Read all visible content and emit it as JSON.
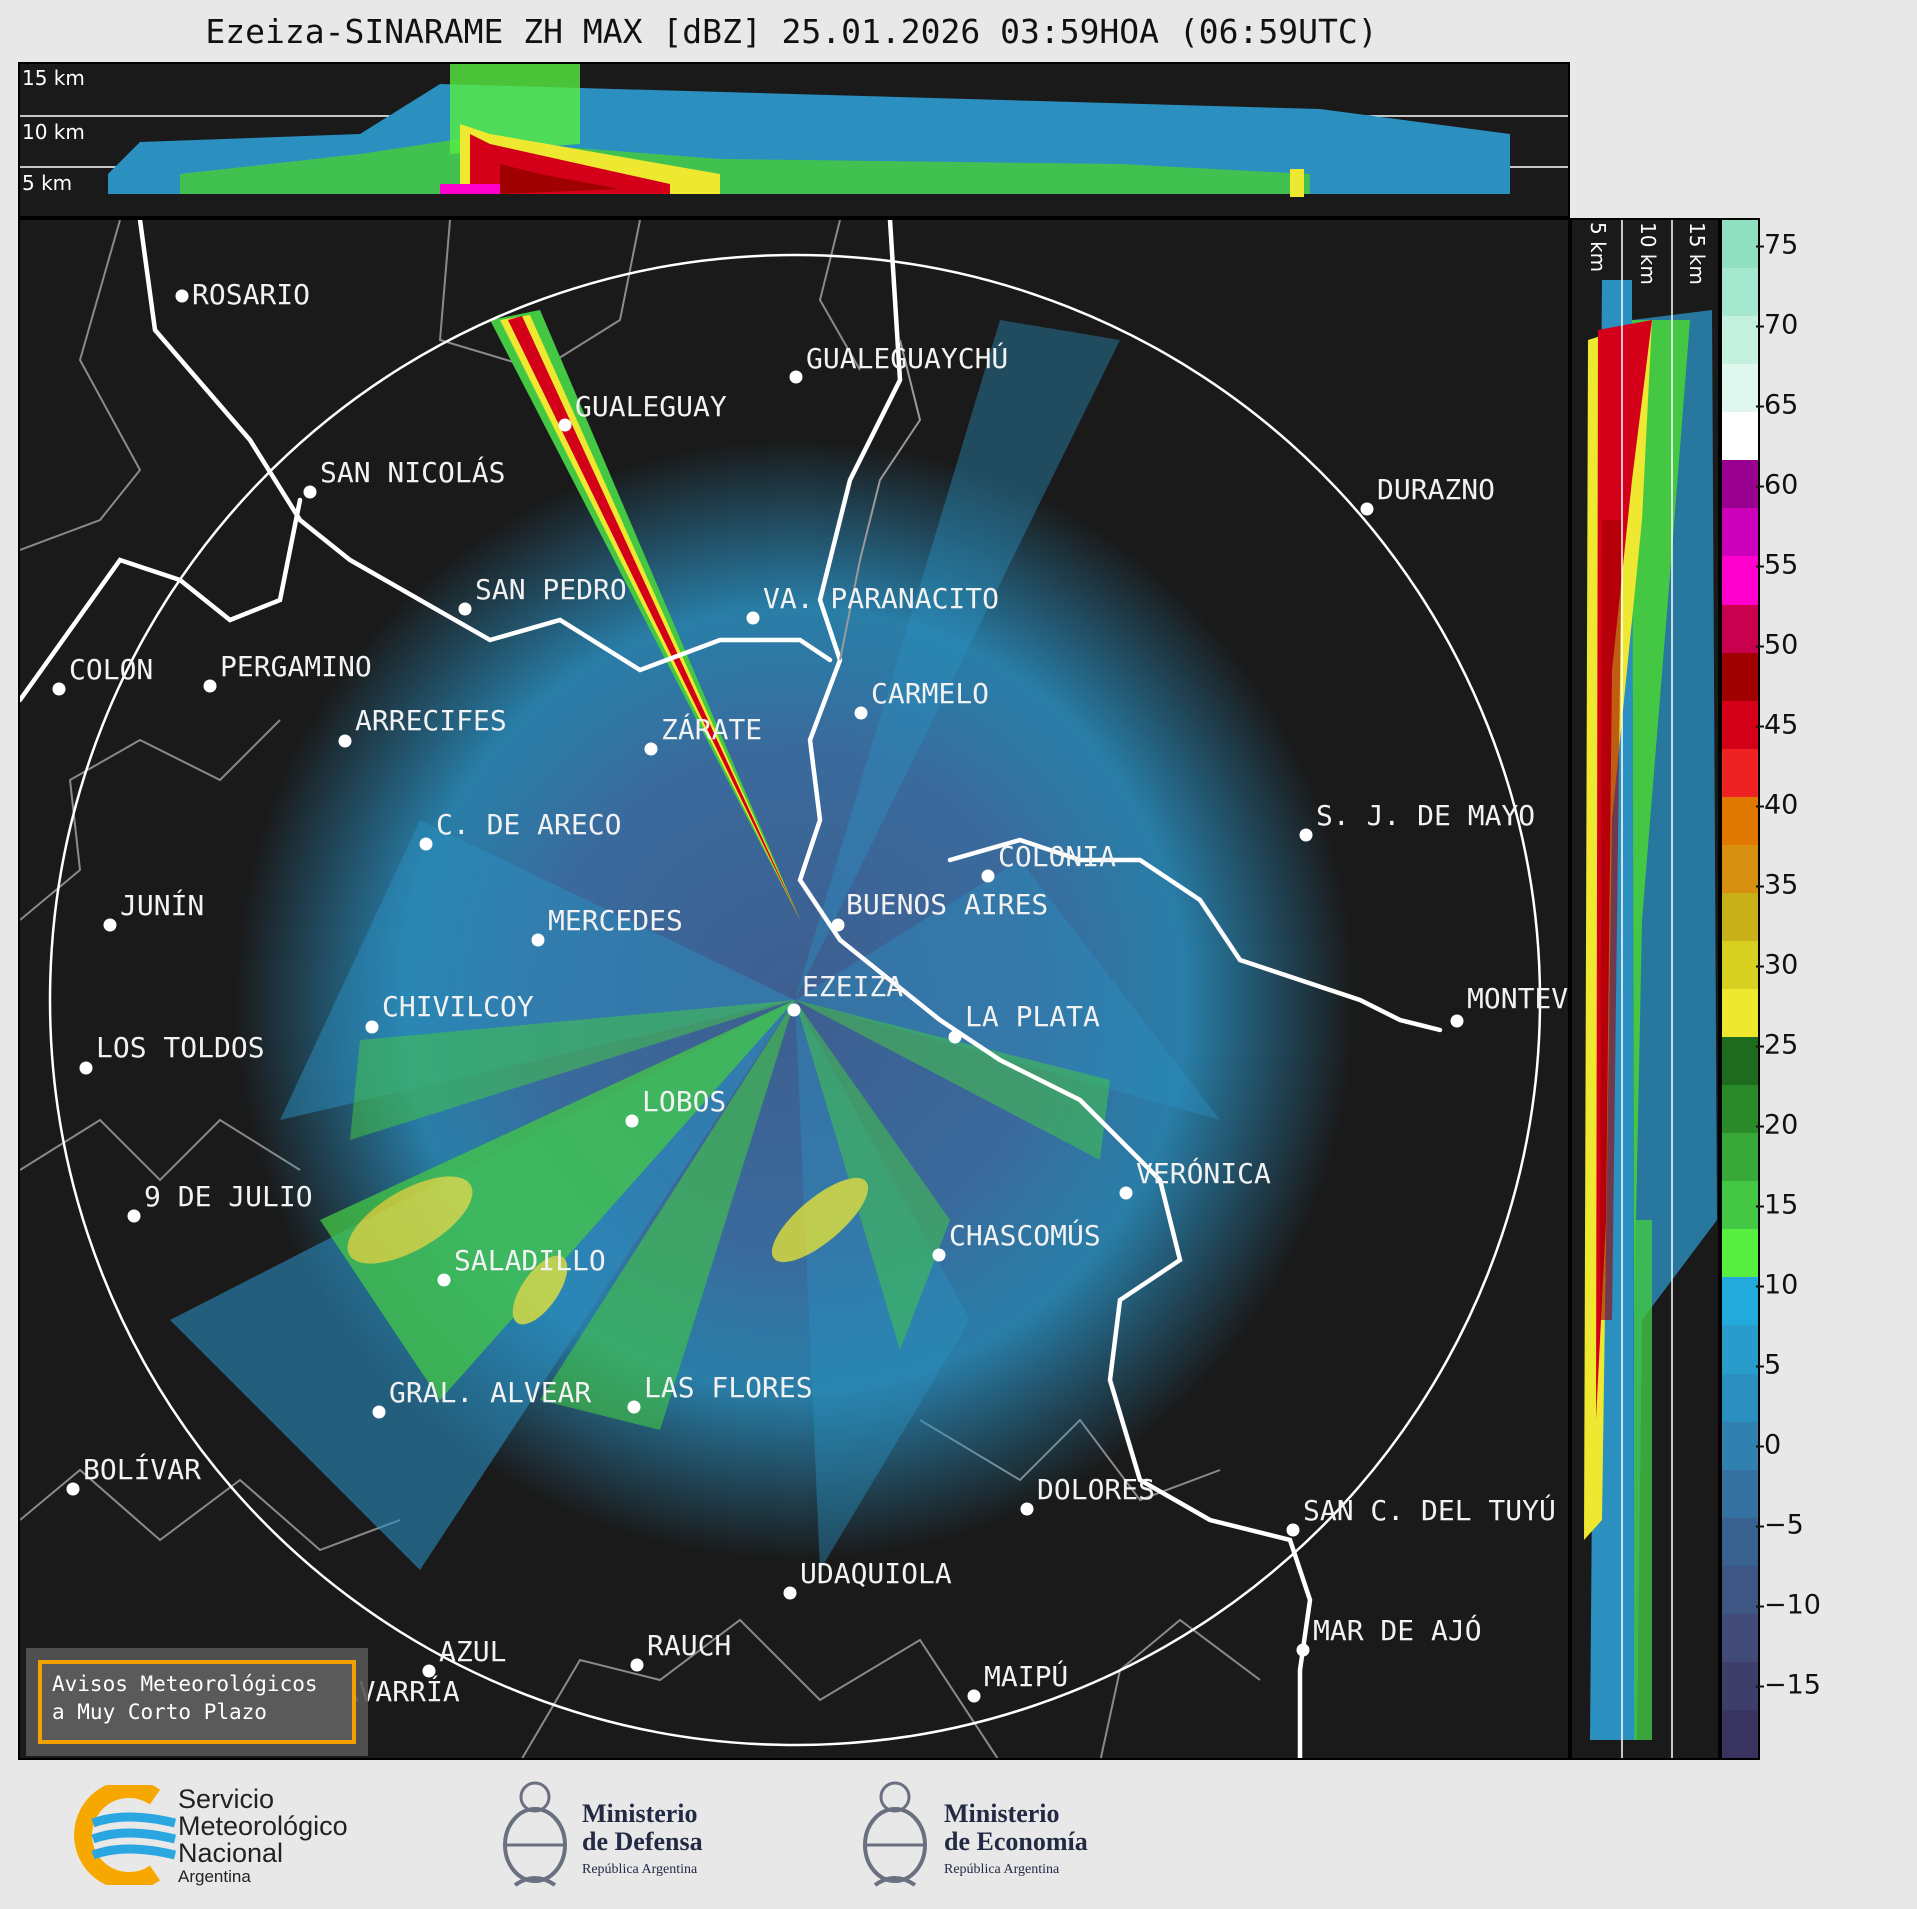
{
  "title": "Ezeiza-SINARAME ZH MAX [dBZ] 25.01.2026 03:59HOA (06:59UTC)",
  "top_panel": {
    "heights": [
      "15 km",
      "10 km",
      "5 km"
    ]
  },
  "side_panel": {
    "heights": [
      "5 km",
      "10 km",
      "15 km"
    ]
  },
  "colorbar": {
    "ticks": [
      "75",
      "70",
      "65",
      "60",
      "55",
      "50",
      "45",
      "40",
      "35",
      "30",
      "25",
      "20",
      "15",
      "10",
      "5",
      "0",
      "−5",
      "−10",
      "−15"
    ],
    "colors": [
      "#8ee0c0",
      "#a6e8cf",
      "#c4f0de",
      "#e0f7ef",
      "#ffffff",
      "#9a0090",
      "#cc00bb",
      "#ff00cc",
      "#c8004e",
      "#a00000",
      "#d4001a",
      "#ee2222",
      "#e07800",
      "#d89010",
      "#c8b018",
      "#d8d020",
      "#eee830",
      "#1e6a1e",
      "#2a8a2a",
      "#38a838",
      "#44c844",
      "#58ee40",
      "#22aadd",
      "#2a9ccc",
      "#2b8fc0",
      "#3080b0",
      "#3470a0",
      "#3a6290",
      "#3e5684",
      "#424a78",
      "#3e3e6a",
      "#3a3460"
    ]
  },
  "cities": [
    {
      "name": "ROSARIO"
    },
    {
      "name": "GUALEGUAYCHÚ"
    },
    {
      "name": "GUALEGUAY"
    },
    {
      "name": "SAN NICOLÁS"
    },
    {
      "name": "DURAZNO"
    },
    {
      "name": "SAN PEDRO"
    },
    {
      "name": "VA. PARANACITO"
    },
    {
      "name": "COLON"
    },
    {
      "name": "PERGAMINO"
    },
    {
      "name": "CARMELO"
    },
    {
      "name": "ARRECIFES"
    },
    {
      "name": "ZÁRATE"
    },
    {
      "name": "S. J. DE MAYO"
    },
    {
      "name": "C. DE ARECO"
    },
    {
      "name": "COLONIA"
    },
    {
      "name": "JUNÍN"
    },
    {
      "name": "MERCEDES"
    },
    {
      "name": "BUENOS AIRES"
    },
    {
      "name": "EZEIZA"
    },
    {
      "name": "MONTEVIDEO"
    },
    {
      "name": "CHIVILCOY"
    },
    {
      "name": "LA PLATA"
    },
    {
      "name": "LOS TOLDOS"
    },
    {
      "name": "LOBOS"
    },
    {
      "name": "VERÓNICA"
    },
    {
      "name": "9 DE JULIO"
    },
    {
      "name": "CHASCOMÚS"
    },
    {
      "name": "SALADILLO"
    },
    {
      "name": "GRAL. ALVEAR"
    },
    {
      "name": "LAS FLORES"
    },
    {
      "name": "BOLÍVAR"
    },
    {
      "name": "DOLORES"
    },
    {
      "name": "SAN C. DEL TUYÚ"
    },
    {
      "name": "UDAQUIOLA"
    },
    {
      "name": "MAR DE AJÓ"
    },
    {
      "name": "AZUL"
    },
    {
      "name": "RAUCH"
    },
    {
      "name": "MAIPÚ"
    },
    {
      "name": "OLAVARRÍA"
    }
  ],
  "avisos": {
    "line1": "Avisos Meteorológicos",
    "line2": "a Muy Corto Plazo"
  },
  "logos": {
    "smn": {
      "l1": "Servicio",
      "l2": "Meteorológico",
      "l3": "Nacional",
      "l4": "Argentina"
    },
    "defensa": {
      "l1": "Ministerio",
      "l2": "de Defensa",
      "l3": "República Argentina"
    },
    "economia": {
      "l1": "Ministerio",
      "l2": "de Economía",
      "l3": "República Argentina"
    }
  }
}
